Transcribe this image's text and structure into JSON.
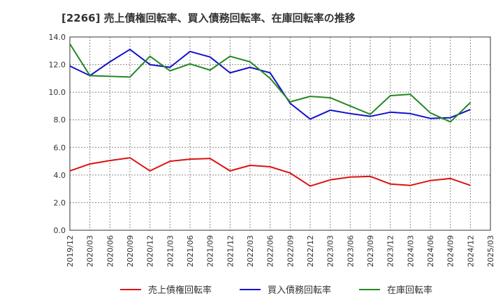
{
  "chart_data": {
    "type": "line",
    "title": "[2266]  売上債権回転率、買入債務回転率、在庫回転率の推移",
    "xlabel": "",
    "ylabel": "",
    "ylim": [
      0,
      14
    ],
    "yticks": [
      0,
      2,
      4,
      6,
      8,
      10,
      12,
      14
    ],
    "ytick_labels": [
      "0.0",
      "2.0",
      "4.0",
      "6.0",
      "8.0",
      "10.0",
      "12.0",
      "14.0"
    ],
    "categories": [
      "2019/12",
      "2020/03",
      "2020/06",
      "2020/09",
      "2020/12",
      "2021/03",
      "2021/06",
      "2021/09",
      "2021/12",
      "2022/03",
      "2022/06",
      "2022/09",
      "2022/12",
      "2023/03",
      "2023/06",
      "2023/09",
      "2023/12",
      "2024/03",
      "2024/06",
      "2024/09",
      "2024/12",
      "2025/03"
    ],
    "grid": true,
    "legend_position": "bottom",
    "series": [
      {
        "name": "売上債権回転率",
        "color": "#dd1111",
        "values": [
          4.3,
          4.8,
          5.05,
          5.25,
          4.3,
          5.0,
          5.15,
          5.2,
          4.3,
          4.7,
          4.6,
          4.15,
          3.2,
          3.65,
          3.85,
          3.9,
          3.35,
          3.25,
          3.6,
          3.75,
          3.25,
          null
        ]
      },
      {
        "name": "買入債務回転率",
        "color": "#1111cc",
        "values": [
          11.9,
          11.2,
          12.2,
          13.1,
          12.0,
          11.8,
          12.95,
          12.55,
          11.4,
          11.8,
          11.4,
          9.2,
          8.05,
          8.7,
          8.45,
          8.25,
          8.55,
          8.45,
          8.1,
          8.15,
          8.75,
          null
        ]
      },
      {
        "name": "在庫回転率",
        "color": "#228822",
        "values": [
          13.5,
          11.2,
          11.15,
          11.1,
          12.6,
          11.55,
          12.05,
          11.6,
          12.6,
          12.2,
          11.0,
          9.3,
          9.7,
          9.6,
          9.0,
          8.4,
          9.75,
          9.85,
          8.5,
          7.85,
          9.25,
          null
        ]
      }
    ]
  }
}
